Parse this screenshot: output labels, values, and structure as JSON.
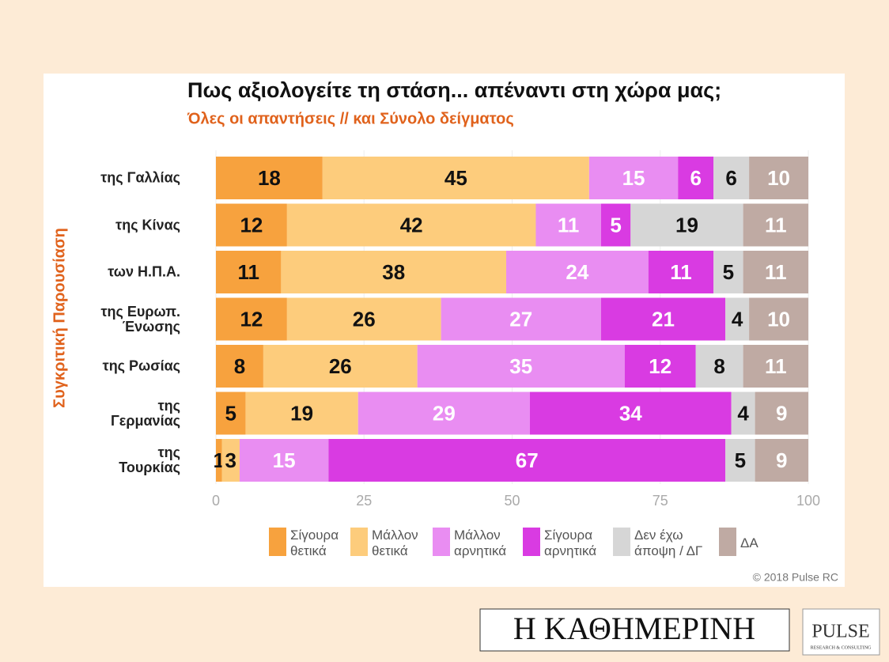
{
  "chart_data": {
    "type": "stacked_barh",
    "title": "Πως αξιολογείτε τη στάση... απέναντι στη χώρα μας;",
    "subtitle": "Όλες οι απαντήσεις // και Σύνολο δείγματος",
    "y_label": "Συγκριτική  Παρουσίαση",
    "categories": [
      "της Γαλλίας",
      "της Κίνας",
      "των Η.Π.Α.",
      "της Ευρωπ.\nΈνωσης",
      "της Ρωσίας",
      "της\nΓερμανίας",
      "της\nΤουρκίας"
    ],
    "series": [
      {
        "name": "Σίγουρα\nθετικά",
        "color": "#f7a23e",
        "label_color": "#111111",
        "values": [
          18,
          12,
          11,
          12,
          8,
          5,
          1
        ]
      },
      {
        "name": "Μάλλον\nθετικά",
        "color": "#fdcc7c",
        "label_color": "#111111",
        "values": [
          45,
          42,
          38,
          26,
          26,
          19,
          3
        ]
      },
      {
        "name": "Μάλλον\nαρνητικά",
        "color": "#e98df2",
        "label_color": "#ffffff",
        "values": [
          15,
          11,
          24,
          27,
          35,
          29,
          15
        ]
      },
      {
        "name": "Σίγουρα\nαρνητικά",
        "color": "#d93be2",
        "label_color": "#ffffff",
        "values": [
          6,
          5,
          11,
          21,
          12,
          34,
          67
        ]
      },
      {
        "name": "Δεν έχω\nάποψη / ΔΓ",
        "color": "#d6d6d6",
        "label_color": "#111111",
        "values": [
          6,
          19,
          5,
          4,
          8,
          4,
          5
        ]
      },
      {
        "name": "ΔΑ",
        "color": "#bfaaa3",
        "label_color": "#ffffff",
        "values": [
          10,
          11,
          11,
          10,
          11,
          9,
          9
        ]
      }
    ],
    "xlim": [
      0,
      100
    ],
    "xticks": [
      0,
      25,
      50,
      75,
      100
    ],
    "grid": true,
    "copyright": "© 2018 Pulse RC",
    "watermark": "PULSE",
    "watermark_sub": "RESEARCH & CONSULTING",
    "logos": {
      "newspaper": "Η ΚΑΘΗΜΕΡΙΝΗ",
      "pulse": "PULSE",
      "pulse_sub": "RESEARCH & CONSULTING"
    }
  }
}
